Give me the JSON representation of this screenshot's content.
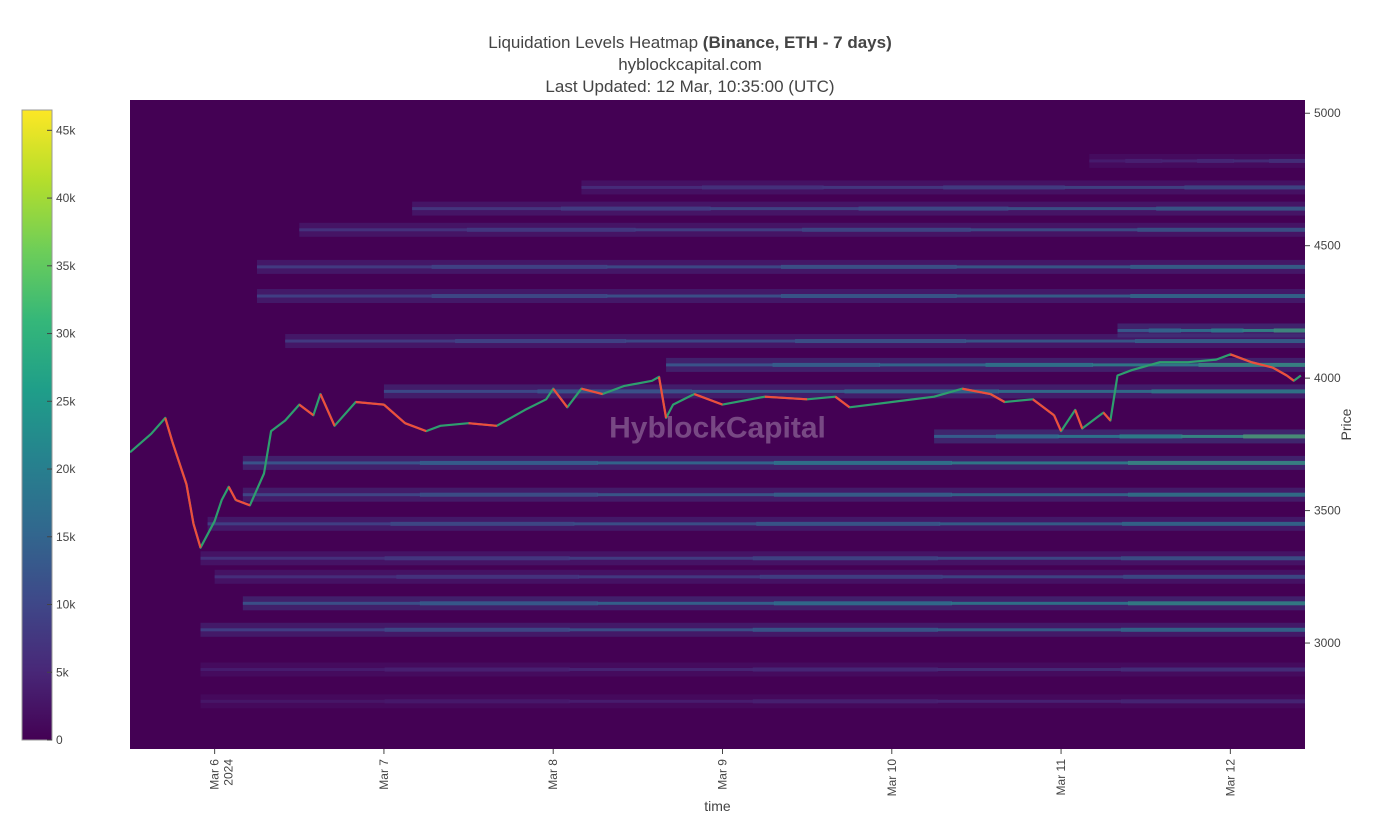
{
  "title": {
    "main": "Liquidation Levels Heatmap",
    "bold": "(Binance, ETH - 7 days)",
    "source": "hyblockcapital.com",
    "updated": "Last Updated: 12 Mar, 10:35:00 (UTC)"
  },
  "watermark": "HyblockCapital",
  "colors": {
    "background": "#440154",
    "candle_up": "#2e9e6e",
    "candle_down": "#ef4d3c",
    "colorscale": [
      "#440154",
      "#482878",
      "#3e4989",
      "#31688e",
      "#26828e",
      "#1f9e89",
      "#35b779",
      "#6ece58",
      "#b5de2b",
      "#fde725"
    ]
  },
  "colorbar": {
    "ticks": [
      "0",
      "5k",
      "10k",
      "15k",
      "20k",
      "25k",
      "30k",
      "35k",
      "40k",
      "45k"
    ],
    "values": [
      0,
      5000,
      10000,
      15000,
      20000,
      25000,
      30000,
      35000,
      40000,
      45000
    ],
    "max": 46500
  },
  "chart_data": {
    "type": "heatmap",
    "title": "Liquidation Levels Heatmap (Binance, ETH - 7 days)",
    "xlabel": "time",
    "ylabel": "Price",
    "xlim": [
      "2024-03-05 12:00",
      "2024-03-12 10:35"
    ],
    "ylim": [
      2600,
      5050
    ],
    "x_ticks": [
      {
        "date": "2024-03-06 00:00",
        "label": "Mar 6",
        "sub": "2024"
      },
      {
        "date": "2024-03-07 00:00",
        "label": "Mar 7",
        "sub": ""
      },
      {
        "date": "2024-03-08 00:00",
        "label": "Mar 8",
        "sub": ""
      },
      {
        "date": "2024-03-09 00:00",
        "label": "Mar 9",
        "sub": ""
      },
      {
        "date": "2024-03-10 00:00",
        "label": "Mar 10",
        "sub": ""
      },
      {
        "date": "2024-03-11 00:00",
        "label": "Mar 11",
        "sub": ""
      },
      {
        "date": "2024-03-12 00:00",
        "label": "Mar 12",
        "sub": ""
      }
    ],
    "y_ticks": [
      {
        "value": 3000,
        "label": "3000"
      },
      {
        "value": 3500,
        "label": "3500"
      },
      {
        "value": 4000,
        "label": "4000"
      },
      {
        "value": 4500,
        "label": "4500"
      },
      {
        "value": 5000,
        "label": "5000"
      }
    ],
    "price_series": {
      "name": "ETH price",
      "points": [
        [
          "2024-03-05 12:00",
          3720
        ],
        [
          "2024-03-05 15:00",
          3790
        ],
        [
          "2024-03-05 17:00",
          3850
        ],
        [
          "2024-03-05 18:00",
          3760
        ],
        [
          "2024-03-05 20:00",
          3600
        ],
        [
          "2024-03-05 21:00",
          3450
        ],
        [
          "2024-03-05 22:00",
          3360
        ],
        [
          "2024-03-06 00:00",
          3460
        ],
        [
          "2024-03-06 01:00",
          3540
        ],
        [
          "2024-03-06 02:00",
          3590
        ],
        [
          "2024-03-06 03:00",
          3540
        ],
        [
          "2024-03-06 05:00",
          3520
        ],
        [
          "2024-03-06 07:00",
          3640
        ],
        [
          "2024-03-06 08:00",
          3800
        ],
        [
          "2024-03-06 10:00",
          3840
        ],
        [
          "2024-03-06 12:00",
          3900
        ],
        [
          "2024-03-06 14:00",
          3860
        ],
        [
          "2024-03-06 15:00",
          3940
        ],
        [
          "2024-03-06 17:00",
          3820
        ],
        [
          "2024-03-06 20:00",
          3910
        ],
        [
          "2024-03-07 00:00",
          3900
        ],
        [
          "2024-03-07 03:00",
          3830
        ],
        [
          "2024-03-07 06:00",
          3800
        ],
        [
          "2024-03-07 08:00",
          3820
        ],
        [
          "2024-03-07 12:00",
          3830
        ],
        [
          "2024-03-07 16:00",
          3820
        ],
        [
          "2024-03-07 20:00",
          3880
        ],
        [
          "2024-03-07 23:00",
          3920
        ],
        [
          "2024-03-08 00:00",
          3960
        ],
        [
          "2024-03-08 02:00",
          3890
        ],
        [
          "2024-03-08 04:00",
          3960
        ],
        [
          "2024-03-08 07:00",
          3940
        ],
        [
          "2024-03-08 10:00",
          3970
        ],
        [
          "2024-03-08 14:00",
          3990
        ],
        [
          "2024-03-08 15:00",
          4005
        ],
        [
          "2024-03-08 16:00",
          3850
        ],
        [
          "2024-03-08 17:00",
          3900
        ],
        [
          "2024-03-08 20:00",
          3940
        ],
        [
          "2024-03-09 00:00",
          3900
        ],
        [
          "2024-03-09 06:00",
          3930
        ],
        [
          "2024-03-09 12:00",
          3920
        ],
        [
          "2024-03-09 16:00",
          3930
        ],
        [
          "2024-03-09 18:00",
          3890
        ],
        [
          "2024-03-10 00:00",
          3910
        ],
        [
          "2024-03-10 06:00",
          3930
        ],
        [
          "2024-03-10 10:00",
          3960
        ],
        [
          "2024-03-10 14:00",
          3940
        ],
        [
          "2024-03-10 16:00",
          3910
        ],
        [
          "2024-03-10 20:00",
          3920
        ],
        [
          "2024-03-10 23:00",
          3860
        ],
        [
          "2024-03-11 00:00",
          3800
        ],
        [
          "2024-03-11 02:00",
          3880
        ],
        [
          "2024-03-11 03:00",
          3810
        ],
        [
          "2024-03-11 05:00",
          3850
        ],
        [
          "2024-03-11 06:00",
          3870
        ],
        [
          "2024-03-11 07:00",
          3840
        ],
        [
          "2024-03-11 08:00",
          4010
        ],
        [
          "2024-03-11 10:00",
          4030
        ],
        [
          "2024-03-11 14:00",
          4060
        ],
        [
          "2024-03-11 18:00",
          4060
        ],
        [
          "2024-03-11 22:00",
          4070
        ],
        [
          "2024-03-12 00:00",
          4090
        ],
        [
          "2024-03-12 03:00",
          4060
        ],
        [
          "2024-03-12 06:00",
          4040
        ],
        [
          "2024-03-12 08:00",
          4010
        ],
        [
          "2024-03-12 09:00",
          3990
        ],
        [
          "2024-03-12 10:00",
          4010
        ]
      ]
    },
    "liquidation_levels": [
      {
        "price": 4820,
        "value": 9000,
        "start": "2024-03-11 04:00"
      },
      {
        "price": 4720,
        "value": 14000,
        "start": "2024-03-08 04:00"
      },
      {
        "price": 4640,
        "value": 18000,
        "start": "2024-03-07 04:00"
      },
      {
        "price": 4560,
        "value": 17000,
        "start": "2024-03-06 12:00"
      },
      {
        "price": 4420,
        "value": 20000,
        "start": "2024-03-06 06:00"
      },
      {
        "price": 4310,
        "value": 22000,
        "start": "2024-03-06 06:00"
      },
      {
        "price": 4180,
        "value": 32000,
        "start": "2024-03-11 08:00"
      },
      {
        "price": 4140,
        "value": 20000,
        "start": "2024-03-06 10:00"
      },
      {
        "price": 4050,
        "value": 30000,
        "start": "2024-03-08 16:00"
      },
      {
        "price": 3950,
        "value": 26000,
        "start": "2024-03-07 00:00"
      },
      {
        "price": 3780,
        "value": 34000,
        "start": "2024-03-10 06:00"
      },
      {
        "price": 3680,
        "value": 30000,
        "start": "2024-03-06 04:00"
      },
      {
        "price": 3560,
        "value": 24000,
        "start": "2024-03-06 04:00"
      },
      {
        "price": 3450,
        "value": 22000,
        "start": "2024-03-05 23:00"
      },
      {
        "price": 3320,
        "value": 16000,
        "start": "2024-03-05 22:00"
      },
      {
        "price": 3250,
        "value": 15000,
        "start": "2024-03-06 00:00"
      },
      {
        "price": 3150,
        "value": 28000,
        "start": "2024-03-06 04:00"
      },
      {
        "price": 3050,
        "value": 22000,
        "start": "2024-03-05 22:00"
      },
      {
        "price": 2900,
        "value": 9000,
        "start": "2024-03-05 22:00"
      },
      {
        "price": 2780,
        "value": 7000,
        "start": "2024-03-05 22:00"
      }
    ]
  }
}
